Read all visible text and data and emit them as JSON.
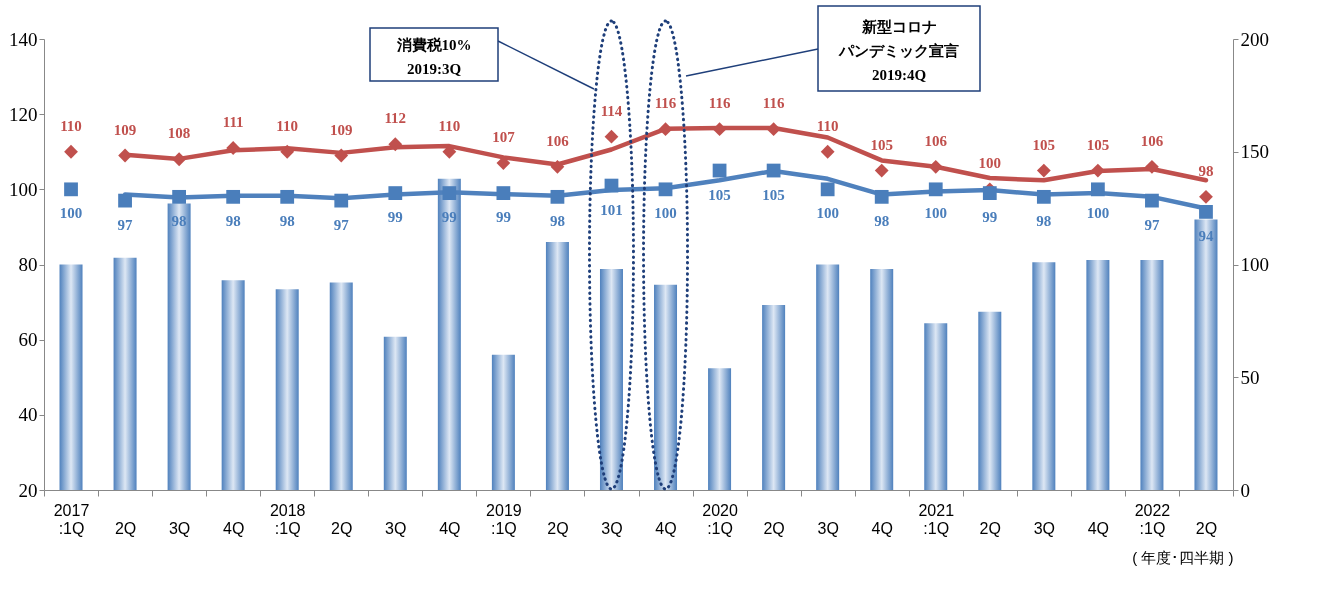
{
  "chart_data": {
    "type": "bar",
    "categories": [
      "2017\n:1Q",
      "2Q",
      "3Q",
      "4Q",
      "2018\n:1Q",
      "2Q",
      "3Q",
      "4Q",
      "2019\n:1Q",
      "2Q",
      "3Q",
      "4Q",
      "2020\n:1Q",
      "2Q",
      "3Q",
      "4Q",
      "2021\n:1Q",
      "2Q",
      "3Q",
      "4Q",
      "2022\n:1Q",
      "2Q"
    ],
    "xlabel": "( 年度･四半期 )",
    "series": [
      {
        "axis": "y2",
        "color": "#4f81bd",
        "values": [
          100,
          103,
          127,
          93,
          89,
          92,
          68,
          138,
          60,
          110,
          98,
          91,
          54,
          82,
          100,
          98,
          74,
          79,
          101,
          102,
          102,
          120
        ]
      },
      {
        "type": "line",
        "color": "#c0504d",
        "marker": "none",
        "values": [
          null,
          109.2,
          108.1,
          110.4,
          110.9,
          109.7,
          111.2,
          111.5,
          108.5,
          106.6,
          110.6,
          116.1,
          116.3,
          116.3,
          113.8,
          107.7,
          106,
          103,
          102.4,
          104.9,
          105.4,
          102.4
        ]
      },
      {
        "type": "line",
        "color": "#4f81bd",
        "marker": "none",
        "values": [
          null,
          98.6,
          97.8,
          98.3,
          98.3,
          97.6,
          98.6,
          99.2,
          98.7,
          98.3,
          99.8,
          100.3,
          102.4,
          104.9,
          102.8,
          98.6,
          99.4,
          99.8,
          98.6,
          99,
          98,
          94.9
        ]
      },
      {
        "type": "scatter",
        "color": "#c0504d",
        "marker": "diamond",
        "values": [
          110,
          109,
          108,
          111,
          110,
          109,
          112,
          110,
          107,
          106,
          114,
          116,
          116,
          116,
          110,
          105,
          106,
          100,
          105,
          105,
          106,
          98
        ],
        "value_labels": [
          "110",
          "109",
          "108",
          "111",
          "110",
          "109",
          "112",
          "110",
          "107",
          "106",
          "114",
          "116",
          "116",
          "116",
          "110",
          "105",
          "106",
          "100",
          "105",
          "105",
          "106",
          "98"
        ]
      },
      {
        "type": "scatter",
        "color": "#4a7ebb",
        "marker": "square",
        "values": [
          100,
          97,
          98,
          98,
          98,
          97,
          99,
          99,
          99,
          98,
          101,
          100,
          105,
          105,
          100,
          98,
          100,
          99,
          98,
          100,
          97,
          94
        ],
        "value_labels": [
          "100",
          "97",
          "98",
          "98",
          "98",
          "97",
          "99",
          "99",
          "99",
          "98",
          "101",
          "100",
          "105",
          "105",
          "100",
          "98",
          "100",
          "99",
          "98",
          "100",
          "97",
          "94"
        ]
      }
    ],
    "ylim": [
      20,
      140
    ],
    "yticks": [
      20,
      40,
      60,
      80,
      100,
      120,
      140
    ],
    "y2lim": [
      0,
      200
    ],
    "y2ticks": [
      0,
      50,
      100,
      150,
      200
    ],
    "grid": false,
    "annotations": [
      "消費税10%\n2019:3Q",
      "新型コロナパンデミック宣言\n2019:4Q"
    ]
  }
}
